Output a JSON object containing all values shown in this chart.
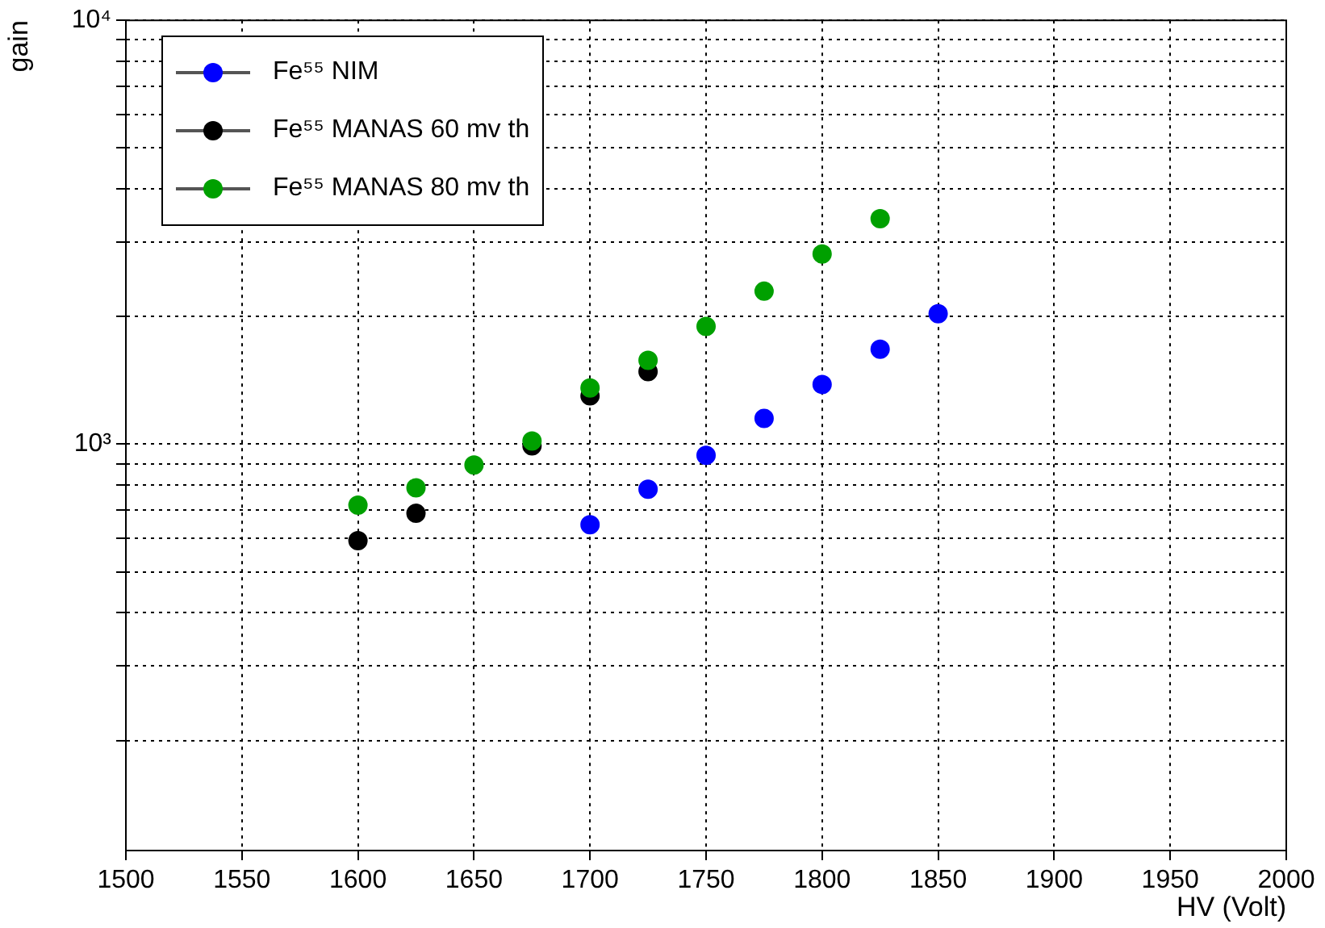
{
  "chart_data": {
    "type": "scatter",
    "xlabel": "HV (Volt)",
    "ylabel": "gain",
    "log": "y",
    "grid": true,
    "marker": "circle",
    "legend": "top left",
    "xlim": [
      1500,
      2000
    ],
    "xticks": [
      1500,
      1550,
      1600,
      1650,
      1700,
      1750,
      1800,
      1850,
      1900,
      1950,
      2000
    ],
    "ylim": [
      110,
      10000
    ],
    "yticks": [
      {
        "value": 200,
        "label": null
      },
      {
        "value": 300,
        "label": null
      },
      {
        "value": 400,
        "label": null
      },
      {
        "value": 500,
        "label": null
      },
      {
        "value": 600,
        "label": null
      },
      {
        "value": 700,
        "label": null
      },
      {
        "value": 800,
        "label": null
      },
      {
        "value": 900,
        "label": null
      },
      {
        "value": 1000,
        "label": "10³"
      },
      {
        "value": 2000,
        "label": null
      },
      {
        "value": 3000,
        "label": null
      },
      {
        "value": 4000,
        "label": null
      },
      {
        "value": 5000,
        "label": null
      },
      {
        "value": 6000,
        "label": null
      },
      {
        "value": 7000,
        "label": null
      },
      {
        "value": 8000,
        "label": null
      },
      {
        "value": 9000,
        "label": null
      },
      {
        "value": 10000,
        "label": "10⁴"
      }
    ],
    "series": [
      {
        "name": "Fe⁵⁵ NIM",
        "color": "#0000ff",
        "x": [
          1700,
          1725,
          1750,
          1775,
          1800,
          1825,
          1850
        ],
        "values": [
          646,
          783,
          941,
          1150,
          1383,
          1676,
          2031
        ]
      },
      {
        "name": "Fe⁵⁵ MANAS 60 mv th",
        "color": "#000000",
        "x": [
          1600,
          1625,
          1650,
          1675,
          1700,
          1725
        ],
        "values": [
          592,
          687,
          null,
          991,
          1300,
          1483
        ]
      },
      {
        "name": "Fe⁵⁵ MANAS 80 mv th",
        "color": "#00a000",
        "x": [
          1600,
          1625,
          1650,
          1675,
          1700,
          1725,
          1750,
          1775,
          1800,
          1825
        ],
        "values": [
          718,
          789,
          893,
          1018,
          1358,
          1578,
          1896,
          2296,
          2810,
          3404
        ]
      }
    ]
  }
}
